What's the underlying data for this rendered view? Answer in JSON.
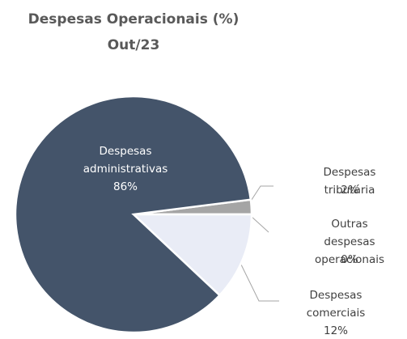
{
  "chart_data": {
    "type": "pie",
    "title": "Despesas Operacionais (%)",
    "subtitle": "Out/23",
    "categories": [
      "Despesas tributária",
      "Outras despesas\noperacionais",
      "Despesas\ncomerciais",
      "Despesas\nadministrativas"
    ],
    "values": [
      2,
      0,
      12,
      86
    ],
    "value_labels": [
      "2%",
      "0%",
      "12%",
      "86%"
    ],
    "colors": [
      "#a5a5a5",
      "#c9c9c9",
      "#e9ecf6",
      "#44546a"
    ]
  }
}
